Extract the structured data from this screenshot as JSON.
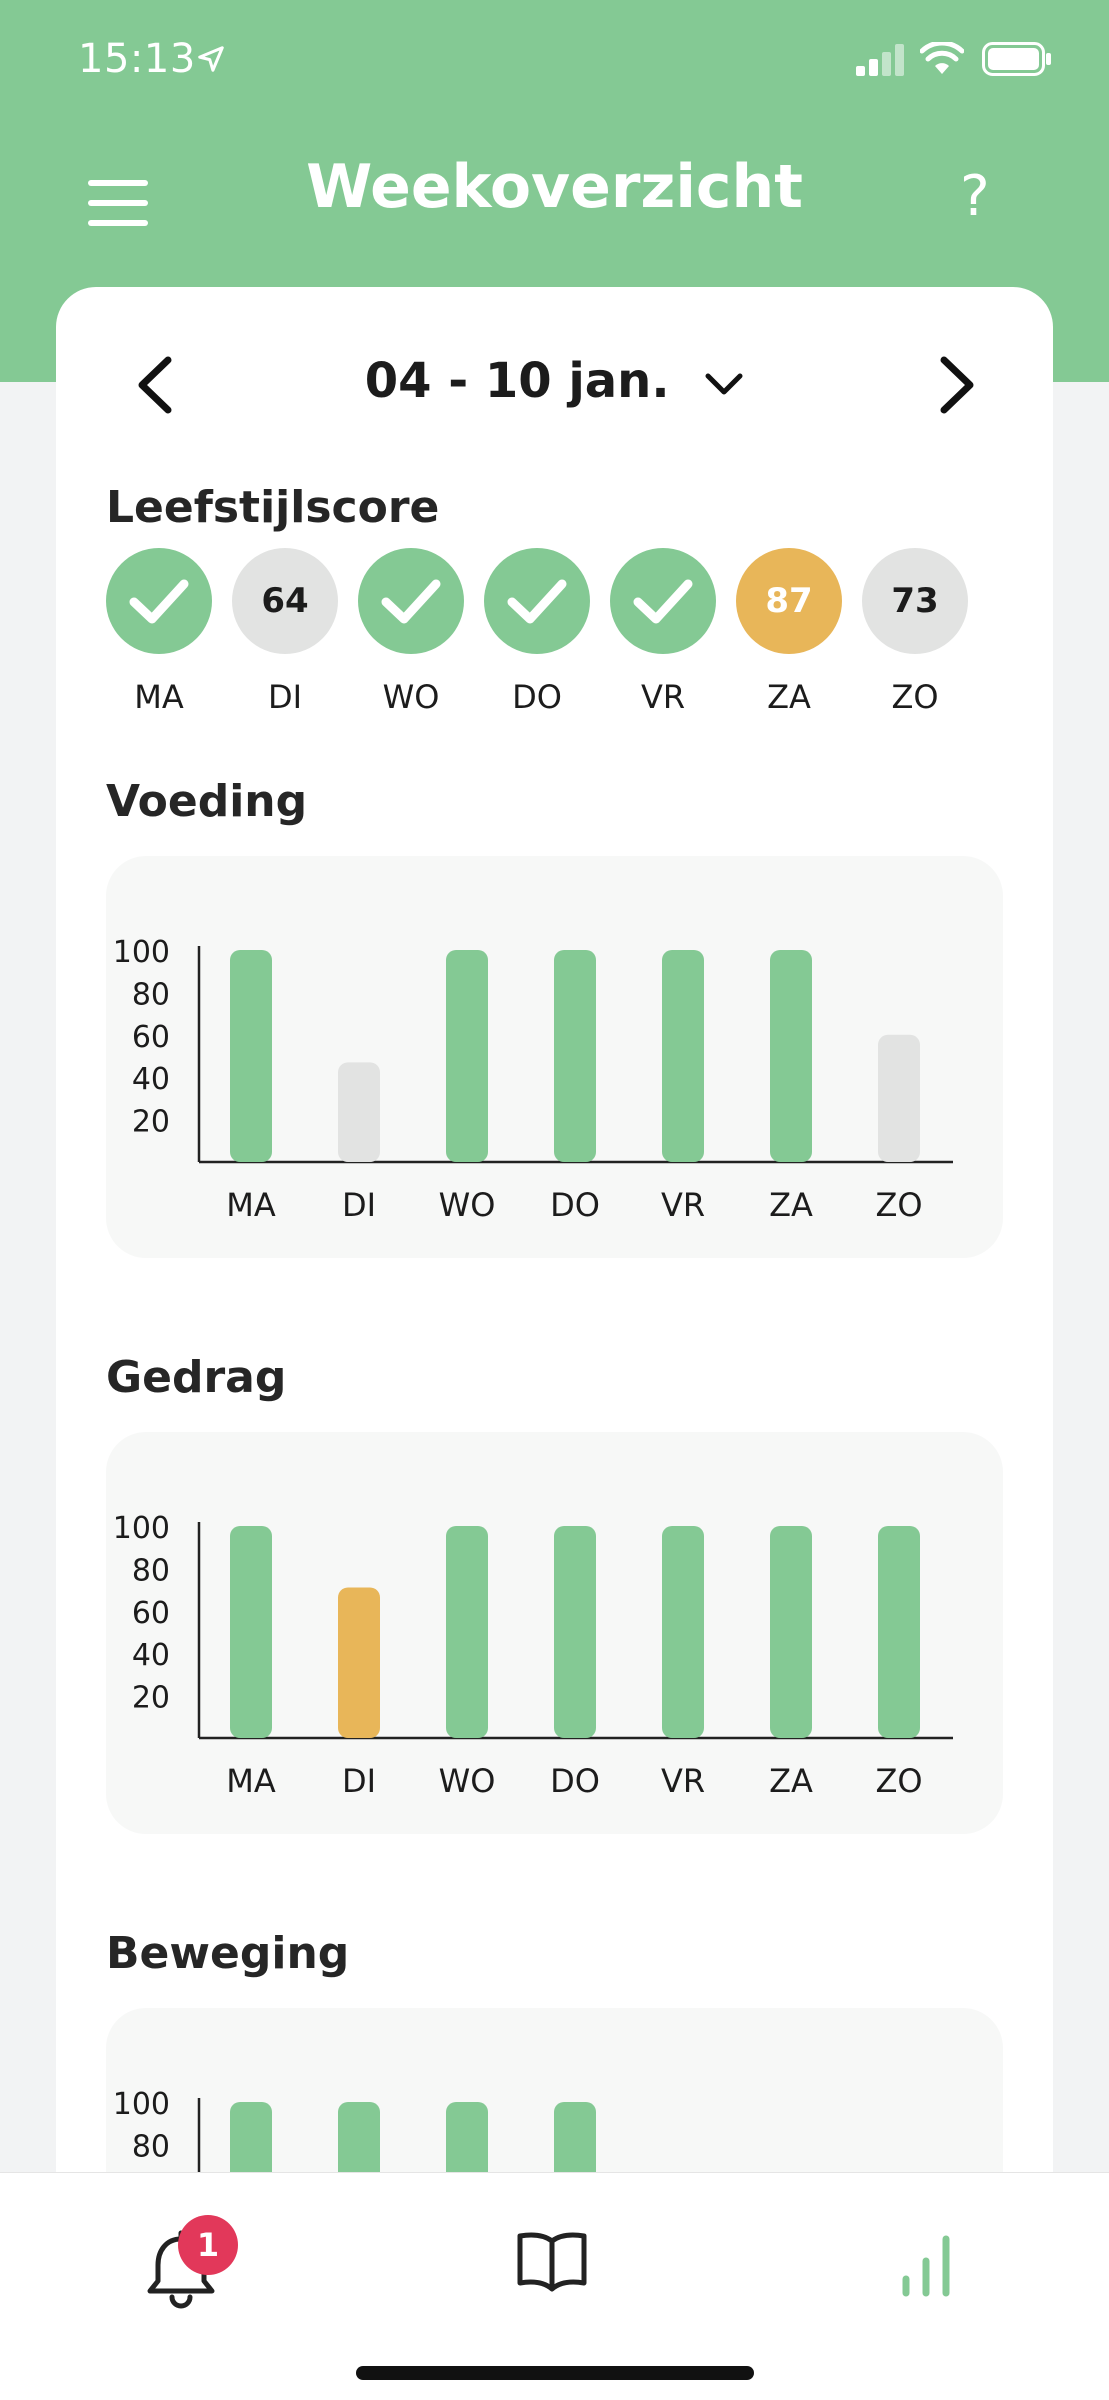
{
  "status_bar": {
    "time": "15:13"
  },
  "header": {
    "title": "Weekoverzicht",
    "help_label": "?"
  },
  "week": {
    "label": "04 - 10 jan."
  },
  "lifestyle": {
    "title": "Leefstijlscore",
    "days": [
      {
        "day": "MA",
        "status": "done",
        "score": null
      },
      {
        "day": "DI",
        "status": "gray",
        "score": "64"
      },
      {
        "day": "WO",
        "status": "done",
        "score": null
      },
      {
        "day": "DO",
        "status": "done",
        "score": null
      },
      {
        "day": "VR",
        "status": "done",
        "score": null
      },
      {
        "day": "ZA",
        "status": "orange",
        "score": "87"
      },
      {
        "day": "ZO",
        "status": "gray",
        "score": "73"
      }
    ]
  },
  "colors": {
    "green": "#84c994",
    "gray": "#e2e3e2",
    "orange": "#e8b659",
    "badge": "#e2385a"
  },
  "chart_data": [
    {
      "type": "bar",
      "title": "Voeding",
      "categories": [
        "MA",
        "DI",
        "WO",
        "DO",
        "VR",
        "ZA",
        "ZO"
      ],
      "values": [
        100,
        47,
        100,
        100,
        100,
        100,
        60
      ],
      "bar_colors": [
        "green",
        "gray",
        "green",
        "green",
        "green",
        "green",
        "gray"
      ],
      "yticks": [
        100,
        80,
        60,
        40,
        20
      ],
      "ylim": [
        0,
        100
      ]
    },
    {
      "type": "bar",
      "title": "Gedrag",
      "categories": [
        "MA",
        "DI",
        "WO",
        "DO",
        "VR",
        "ZA",
        "ZO"
      ],
      "values": [
        100,
        71,
        100,
        100,
        100,
        100,
        100
      ],
      "bar_colors": [
        "green",
        "orange",
        "green",
        "green",
        "green",
        "green",
        "green"
      ],
      "yticks": [
        100,
        80,
        60,
        40,
        20
      ],
      "ylim": [
        0,
        100
      ]
    },
    {
      "type": "bar",
      "title": "Beweging",
      "categories": [
        "MA",
        "DI",
        "WO",
        "DO",
        "VR",
        "ZA",
        "ZO"
      ],
      "values": [
        100,
        100,
        100,
        100,
        null,
        null,
        null
      ],
      "bar_colors": [
        "green",
        "green",
        "green",
        "green",
        "green",
        "green",
        "green"
      ],
      "yticks": [
        100,
        80
      ],
      "ylim": [
        0,
        100
      ]
    }
  ],
  "tabbar": {
    "notifications_badge": "1"
  }
}
